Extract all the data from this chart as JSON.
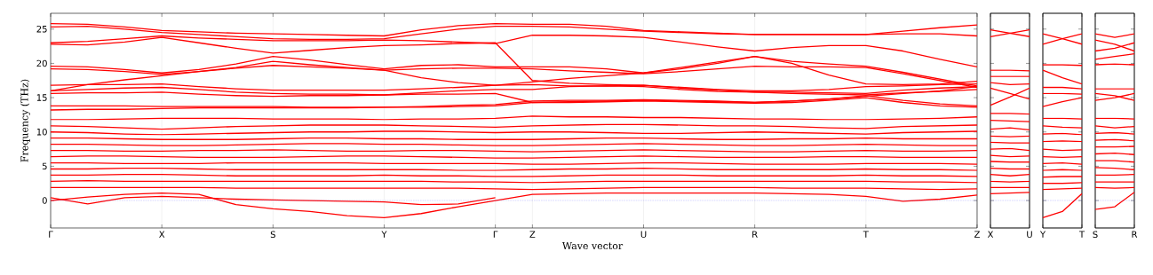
{
  "chart_data": [
    {
      "type": "line",
      "ylabel": "Frequency (THz)",
      "xlabel": "Wave vector",
      "grid": "x",
      "categories": [
        "Γ",
        null,
        null,
        "X",
        null,
        null,
        "S",
        null,
        null,
        "Y",
        null,
        null,
        "Γ",
        "Z",
        null,
        null,
        "U",
        null,
        null,
        "R",
        null,
        null,
        "T",
        null,
        null,
        "Z"
      ],
      "ylim": [
        -4,
        27.3
      ],
      "yticks": [
        0,
        5,
        10,
        15,
        20,
        25
      ],
      "ref_lines": [
        {
          "axis": "y",
          "value": 0,
          "color": "#8080ff",
          "line_style": "dotted"
        }
      ],
      "series": [
        {
          "color": "#ff0000",
          "values": [
            25.8,
            25.7,
            25.3,
            24.8,
            24.6,
            24.4,
            24.3,
            24.2,
            24.1,
            24.0,
            24.9,
            25.5,
            25.8,
            25.7,
            25.7,
            25.4,
            24.8,
            24.6,
            24.4,
            24.2,
            24.2,
            24.2,
            24.2,
            24.7,
            25.2,
            25.6
          ]
        },
        {
          "color": "#ff0000",
          "values": [
            25.3,
            25.4,
            25.0,
            24.5,
            24.2,
            23.9,
            23.6,
            23.5,
            23.5,
            23.6,
            24.3,
            25.0,
            25.4,
            25.4,
            25.3,
            25.0,
            24.7,
            24.5,
            24.3,
            24.2,
            24.2,
            24.2,
            24.2,
            24.3,
            24.3,
            24.0
          ]
        },
        {
          "color": "#ff0000",
          "values": [
            23.0,
            23.2,
            23.6,
            24.0,
            23.7,
            23.5,
            23.3,
            23.3,
            23.3,
            23.4,
            23.3,
            23.1,
            22.9,
            24.1,
            24.1,
            24.0,
            23.8,
            23.1,
            22.4,
            21.8,
            22.3,
            22.6,
            22.6,
            21.8,
            20.6,
            19.5
          ]
        },
        {
          "color": "#ff0000",
          "values": [
            22.8,
            22.7,
            23.1,
            23.8,
            23.0,
            22.2,
            21.5,
            21.9,
            22.3,
            22.6,
            22.7,
            22.9,
            23.0,
            17.5,
            17.1,
            16.9,
            16.8,
            16.5,
            16.2,
            16.0,
            16.0,
            16.2,
            16.6,
            16.7,
            16.9,
            17.0
          ]
        },
        {
          "color": "#ff0000",
          "values": [
            19.6,
            19.5,
            19.1,
            18.6,
            19.1,
            19.9,
            21.0,
            20.5,
            19.8,
            19.2,
            19.7,
            19.8,
            19.5,
            19.5,
            19.5,
            19.2,
            18.6,
            19.2,
            20.0,
            21.0,
            20.3,
            19.9,
            19.6,
            18.7,
            17.7,
            16.7
          ]
        },
        {
          "color": "#ff0000",
          "values": [
            19.2,
            19.1,
            18.8,
            18.4,
            18.8,
            19.4,
            20.3,
            19.8,
            19.4,
            19.0,
            19.2,
            19.3,
            19.3,
            19.2,
            18.9,
            18.7,
            18.5,
            18.8,
            19.2,
            19.6,
            19.5,
            19.5,
            19.4,
            18.5,
            17.5,
            16.5
          ]
        },
        {
          "color": "#ff0000",
          "values": [
            16.0,
            16.9,
            17.6,
            18.2,
            18.8,
            19.3,
            19.7,
            19.5,
            19.3,
            19.0,
            17.9,
            17.2,
            16.8,
            17.3,
            17.8,
            18.2,
            18.6,
            19.4,
            20.2,
            21.0,
            20.0,
            18.3,
            17.0,
            16.9,
            17.0,
            17.4
          ]
        },
        {
          "color": "#ff0000",
          "values": [
            16.8,
            16.9,
            16.9,
            17.0,
            16.6,
            16.3,
            16.1,
            16.1,
            16.1,
            16.1,
            16.3,
            16.5,
            16.8,
            16.9,
            16.7,
            16.7,
            16.8,
            16.4,
            16.1,
            15.8,
            15.8,
            15.7,
            15.6,
            16.1,
            16.4,
            16.6
          ]
        },
        {
          "color": "#ff0000",
          "values": [
            16.0,
            16.2,
            16.4,
            16.5,
            16.2,
            15.8,
            15.6,
            15.5,
            15.5,
            15.4,
            15.7,
            16.0,
            16.2,
            16.2,
            16.6,
            16.7,
            16.6,
            16.2,
            15.9,
            15.8,
            15.6,
            15.5,
            15.4,
            15.7,
            15.9,
            16.2
          ]
        },
        {
          "color": "#ff0000",
          "values": [
            15.6,
            15.7,
            15.7,
            15.8,
            15.5,
            15.3,
            15.2,
            15.3,
            15.3,
            15.4,
            15.5,
            15.5,
            15.6,
            14.3,
            14.4,
            14.5,
            14.6,
            14.5,
            14.4,
            14.3,
            14.5,
            14.8,
            15.3,
            14.6,
            14.1,
            13.8
          ]
        },
        {
          "color": "#ff0000",
          "values": [
            13.8,
            13.8,
            13.8,
            13.7,
            13.7,
            13.7,
            13.7,
            13.6,
            13.6,
            13.6,
            13.7,
            13.9,
            14.0,
            14.5,
            14.6,
            14.6,
            14.7,
            14.6,
            14.5,
            14.3,
            14.5,
            14.8,
            15.2,
            15.6,
            16.0,
            16.6
          ]
        },
        {
          "color": "#ff0000",
          "values": [
            13.2,
            13.3,
            13.3,
            13.4,
            13.5,
            13.5,
            13.5,
            13.5,
            13.5,
            13.6,
            13.6,
            13.7,
            13.8,
            14.3,
            14.3,
            14.4,
            14.5,
            14.4,
            14.3,
            14.2,
            14.3,
            14.6,
            15.0,
            14.3,
            13.8,
            13.6
          ]
        },
        {
          "color": "#ff0000",
          "values": [
            11.8,
            11.8,
            11.9,
            12.0,
            12.0,
            12.0,
            11.9,
            11.9,
            11.9,
            11.8,
            11.9,
            11.9,
            12.0,
            12.3,
            12.2,
            12.2,
            12.1,
            12.1,
            12.0,
            11.9,
            11.9,
            11.8,
            11.8,
            11.9,
            12.0,
            12.2
          ]
        },
        {
          "color": "#ff0000",
          "values": [
            10.9,
            10.8,
            10.6,
            10.4,
            10.6,
            10.8,
            10.9,
            11.0,
            11.0,
            11.0,
            10.9,
            10.8,
            10.7,
            10.9,
            11.0,
            11.1,
            11.1,
            11.0,
            10.9,
            10.9,
            10.8,
            10.6,
            10.5,
            10.8,
            10.9,
            11.0
          ]
        },
        {
          "color": "#ff0000",
          "values": [
            10.0,
            9.9,
            9.7,
            9.6,
            9.7,
            9.8,
            9.9,
            10.0,
            10.0,
            10.1,
            10.1,
            10.0,
            9.9,
            10.0,
            10.0,
            9.9,
            9.8,
            9.8,
            9.9,
            10.0,
            9.9,
            9.8,
            9.7,
            9.9,
            10.0,
            10.1
          ]
        },
        {
          "color": "#ff0000",
          "values": [
            9.1,
            9.1,
            9.0,
            8.9,
            8.9,
            8.9,
            9.0,
            9.1,
            9.1,
            9.0,
            9.0,
            8.9,
            8.9,
            8.9,
            9.0,
            9.1,
            9.1,
            9.0,
            8.9,
            8.9,
            9.0,
            9.0,
            9.1,
            9.0,
            9.0,
            9.0
          ]
        },
        {
          "color": "#ff0000",
          "values": [
            8.2,
            8.2,
            8.1,
            8.0,
            8.0,
            8.1,
            8.2,
            8.3,
            8.3,
            8.2,
            8.2,
            8.1,
            8.0,
            8.0,
            8.1,
            8.2,
            8.3,
            8.2,
            8.1,
            8.0,
            8.0,
            8.1,
            8.2,
            8.1,
            8.0,
            8.0
          ]
        },
        {
          "color": "#ff0000",
          "values": [
            7.3,
            7.3,
            7.2,
            7.2,
            7.3,
            7.3,
            7.4,
            7.3,
            7.2,
            7.2,
            7.3,
            7.3,
            7.2,
            7.1,
            7.2,
            7.3,
            7.4,
            7.3,
            7.2,
            7.1,
            7.1,
            7.2,
            7.3,
            7.2,
            7.2,
            7.3
          ]
        },
        {
          "color": "#ff0000",
          "values": [
            6.4,
            6.5,
            6.5,
            6.4,
            6.3,
            6.3,
            6.3,
            6.4,
            6.5,
            6.5,
            6.4,
            6.3,
            6.2,
            6.2,
            6.3,
            6.4,
            6.5,
            6.4,
            6.3,
            6.3,
            6.3,
            6.4,
            6.4,
            6.3,
            6.3,
            6.3
          ]
        },
        {
          "color": "#ff0000",
          "values": [
            5.5,
            5.5,
            5.4,
            5.4,
            5.4,
            5.5,
            5.5,
            5.5,
            5.5,
            5.4,
            5.4,
            5.4,
            5.4,
            5.3,
            5.3,
            5.4,
            5.5,
            5.5,
            5.4,
            5.3,
            5.3,
            5.3,
            5.4,
            5.4,
            5.4,
            5.3
          ]
        },
        {
          "color": "#ff0000",
          "values": [
            4.6,
            4.6,
            4.7,
            4.7,
            4.6,
            4.5,
            4.5,
            4.5,
            4.5,
            4.5,
            4.5,
            4.4,
            4.4,
            4.5,
            4.6,
            4.6,
            4.7,
            4.6,
            4.5,
            4.5,
            4.5,
            4.5,
            4.6,
            4.5,
            4.5,
            4.4
          ]
        },
        {
          "color": "#ff0000",
          "values": [
            3.7,
            3.7,
            3.8,
            3.8,
            3.7,
            3.6,
            3.6,
            3.6,
            3.6,
            3.7,
            3.6,
            3.6,
            3.5,
            3.5,
            3.6,
            3.7,
            3.7,
            3.7,
            3.6,
            3.6,
            3.6,
            3.6,
            3.7,
            3.6,
            3.6,
            3.5
          ]
        },
        {
          "color": "#ff0000",
          "values": [
            2.8,
            2.9,
            2.8,
            2.8,
            2.8,
            2.8,
            2.8,
            2.8,
            2.8,
            2.8,
            2.8,
            2.7,
            2.7,
            2.6,
            2.7,
            2.8,
            2.8,
            2.8,
            2.8,
            2.8,
            2.8,
            2.8,
            2.8,
            2.7,
            2.7,
            2.6
          ]
        },
        {
          "color": "#ff0000",
          "values": [
            1.9,
            1.9,
            1.9,
            1.9,
            1.9,
            1.8,
            1.8,
            1.8,
            1.8,
            1.8,
            1.8,
            1.8,
            1.7,
            1.6,
            1.7,
            1.8,
            1.9,
            1.9,
            1.9,
            1.9,
            1.8,
            1.8,
            1.8,
            1.7,
            1.6,
            1.7
          ]
        },
        {
          "color": "#ff0000",
          "values": [
            0,
            0.5,
            0.9,
            1.1,
            0.9,
            -0.6,
            -1.2,
            -1.6,
            -2.2,
            -2.5,
            -1.9,
            -0.9,
            0,
            0.9,
            1.0,
            1.1,
            1.1,
            1.1,
            1.1,
            1.1,
            1.0,
            0.9,
            0.6,
            -0.1,
            0.2,
            0.8
          ]
        },
        {
          "color": "#ff0000",
          "values": [
            0.4,
            -0.5,
            0.4,
            0.6,
            0.4,
            0.2,
            0.1,
            0.0,
            -0.1,
            -0.2,
            -0.6,
            -0.5,
            0.4,
            null,
            null,
            null,
            null,
            null,
            null,
            null,
            null,
            null,
            null,
            null,
            null,
            null
          ]
        }
      ]
    },
    {
      "type": "line",
      "tick_labels": "x",
      "categories": [
        "X",
        null,
        "U"
      ],
      "ylim": [
        -4,
        27.3
      ],
      "yticks": [
        0,
        5,
        10,
        15,
        20,
        25
      ],
      "ref_lines": [
        {
          "axis": "y",
          "value": 0,
          "color": "#8080ff",
          "line_style": "dotted"
        }
      ],
      "series": [
        {
          "color": "#ff0000",
          "values": [
            24.9,
            24.4,
            23.9
          ]
        },
        {
          "color": "#ff0000",
          "values": [
            23.9,
            24.4,
            24.9
          ]
        },
        {
          "color": "#ff0000",
          "values": [
            19.0,
            19.0,
            18.9
          ]
        },
        {
          "color": "#ff0000",
          "values": [
            18.1,
            18.1,
            18.1
          ]
        },
        {
          "color": "#ff0000",
          "values": [
            17.2,
            16.9,
            17.0
          ]
        },
        {
          "color": "#ff0000",
          "values": [
            16.4,
            15.6,
            14.8
          ]
        },
        {
          "color": "#ff0000",
          "values": [
            13.9,
            15.1,
            16.4
          ]
        },
        {
          "color": "#ff0000",
          "values": [
            12.7,
            12.7,
            12.6
          ]
        },
        {
          "color": "#ff0000",
          "values": [
            11.7,
            11.6,
            11.5
          ]
        },
        {
          "color": "#ff0000",
          "values": [
            10.4,
            10.6,
            10.3
          ]
        },
        {
          "color": "#ff0000",
          "values": [
            9.4,
            9.3,
            9.4
          ]
        },
        {
          "color": "#ff0000",
          "values": [
            8.5,
            8.4,
            8.4
          ]
        },
        {
          "color": "#ff0000",
          "values": [
            7.5,
            7.6,
            7.3
          ]
        },
        {
          "color": "#ff0000",
          "values": [
            6.6,
            6.4,
            6.5
          ]
        },
        {
          "color": "#ff0000",
          "values": [
            5.7,
            5.6,
            5.6
          ]
        },
        {
          "color": "#ff0000",
          "values": [
            4.7,
            4.6,
            4.6
          ]
        },
        {
          "color": "#ff0000",
          "values": [
            3.8,
            3.6,
            3.8
          ]
        },
        {
          "color": "#ff0000",
          "values": [
            2.8,
            2.7,
            2.8
          ]
        },
        {
          "color": "#ff0000",
          "values": [
            1.9,
            1.9,
            1.9
          ]
        },
        {
          "color": "#ff0000",
          "values": [
            1.0,
            1.1,
            1.2
          ]
        }
      ]
    },
    {
      "type": "line",
      "tick_labels": "x",
      "categories": [
        "Y",
        null,
        "T"
      ],
      "ylim": [
        -4,
        27.3
      ],
      "yticks": [
        0,
        5,
        10,
        15,
        20,
        25
      ],
      "ref_lines": [
        {
          "axis": "y",
          "value": 0,
          "color": "#8080ff",
          "line_style": "dotted"
        }
      ],
      "series": [
        {
          "color": "#ff0000",
          "values": [
            24.3,
            23.6,
            22.8
          ]
        },
        {
          "color": "#ff0000",
          "values": [
            22.8,
            23.6,
            24.3
          ]
        },
        {
          "color": "#ff0000",
          "values": [
            19.8,
            19.8,
            19.7
          ]
        },
        {
          "color": "#ff0000",
          "values": [
            19.0,
            17.9,
            17.0
          ]
        },
        {
          "color": "#ff0000",
          "values": [
            16.5,
            16.5,
            16.3
          ]
        },
        {
          "color": "#ff0000",
          "values": [
            15.6,
            15.6,
            15.5
          ]
        },
        {
          "color": "#ff0000",
          "values": [
            13.7,
            14.4,
            15.0
          ]
        },
        {
          "color": "#ff0000",
          "values": [
            12.0,
            12.0,
            11.9
          ]
        },
        {
          "color": "#ff0000",
          "values": [
            10.9,
            10.7,
            10.6
          ]
        },
        {
          "color": "#ff0000",
          "values": [
            9.7,
            9.8,
            9.6
          ]
        },
        {
          "color": "#ff0000",
          "values": [
            8.6,
            8.7,
            8.6
          ]
        },
        {
          "color": "#ff0000",
          "values": [
            7.5,
            7.3,
            7.4
          ]
        },
        {
          "color": "#ff0000",
          "values": [
            6.4,
            6.3,
            6.4
          ]
        },
        {
          "color": "#ff0000",
          "values": [
            5.4,
            5.5,
            5.3
          ]
        },
        {
          "color": "#ff0000",
          "values": [
            4.4,
            4.5,
            4.4
          ]
        },
        {
          "color": "#ff0000",
          "values": [
            3.4,
            3.5,
            3.5
          ]
        },
        {
          "color": "#ff0000",
          "values": [
            2.5,
            2.5,
            2.6
          ]
        },
        {
          "color": "#ff0000",
          "values": [
            1.6,
            1.7,
            1.8
          ]
        },
        {
          "color": "#ff0000",
          "values": [
            -2.5,
            -1.6,
            1.0
          ]
        }
      ]
    },
    {
      "type": "line",
      "tick_labels": "x",
      "categories": [
        "S",
        null,
        "R"
      ],
      "ylim": [
        -4,
        27.3
      ],
      "yticks": [
        0,
        5,
        10,
        15,
        20,
        25
      ],
      "ref_lines": [
        {
          "axis": "y",
          "value": 0,
          "color": "#8080ff",
          "line_style": "dotted"
        }
      ],
      "series": [
        {
          "color": "#ff0000",
          "values": [
            24.3,
            23.8,
            24.3
          ]
        },
        {
          "color": "#ff0000",
          "values": [
            23.4,
            22.8,
            21.8
          ]
        },
        {
          "color": "#ff0000",
          "values": [
            21.8,
            22.2,
            23.0
          ]
        },
        {
          "color": "#ff0000",
          "values": [
            20.6,
            21.0,
            21.4
          ]
        },
        {
          "color": "#ff0000",
          "values": [
            19.8,
            19.9,
            19.8
          ]
        },
        {
          "color": "#ff0000",
          "values": [
            16.3,
            16.3,
            16.3
          ]
        },
        {
          "color": "#ff0000",
          "values": [
            15.6,
            15.3,
            14.6
          ]
        },
        {
          "color": "#ff0000",
          "values": [
            14.6,
            15.0,
            15.6
          ]
        },
        {
          "color": "#ff0000",
          "values": [
            12.0,
            12.0,
            11.9
          ]
        },
        {
          "color": "#ff0000",
          "values": [
            10.9,
            10.6,
            10.8
          ]
        },
        {
          "color": "#ff0000",
          "values": [
            9.8,
            9.9,
            9.7
          ]
        },
        {
          "color": "#ff0000",
          "values": [
            8.8,
            8.9,
            8.7
          ]
        },
        {
          "color": "#ff0000",
          "values": [
            7.8,
            7.8,
            7.9
          ]
        },
        {
          "color": "#ff0000",
          "values": [
            6.8,
            6.9,
            6.7
          ]
        },
        {
          "color": "#ff0000",
          "values": [
            5.8,
            5.8,
            5.6
          ]
        },
        {
          "color": "#ff0000",
          "values": [
            4.8,
            4.7,
            4.5
          ]
        },
        {
          "color": "#ff0000",
          "values": [
            3.7,
            3.7,
            3.8
          ]
        },
        {
          "color": "#ff0000",
          "values": [
            2.7,
            2.7,
            2.7
          ]
        },
        {
          "color": "#ff0000",
          "values": [
            1.9,
            1.8,
            1.9
          ]
        },
        {
          "color": "#ff0000",
          "values": [
            -1.3,
            -0.9,
            1.2
          ]
        }
      ]
    }
  ]
}
